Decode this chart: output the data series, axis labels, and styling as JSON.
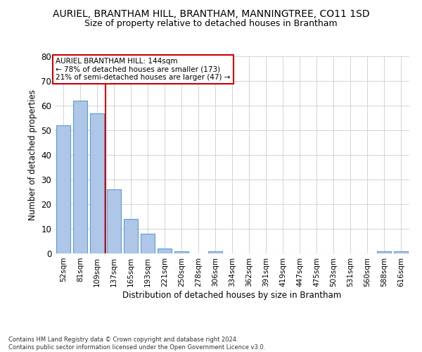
{
  "title": "AURIEL, BRANTHAM HILL, BRANTHAM, MANNINGTREE, CO11 1SD",
  "subtitle": "Size of property relative to detached houses in Brantham",
  "xlabel": "Distribution of detached houses by size in Brantham",
  "ylabel": "Number of detached properties",
  "categories": [
    "52sqm",
    "81sqm",
    "109sqm",
    "137sqm",
    "165sqm",
    "193sqm",
    "221sqm",
    "250sqm",
    "278sqm",
    "306sqm",
    "334sqm",
    "362sqm",
    "391sqm",
    "419sqm",
    "447sqm",
    "475sqm",
    "503sqm",
    "531sqm",
    "560sqm",
    "588sqm",
    "616sqm"
  ],
  "values": [
    52,
    62,
    57,
    26,
    14,
    8,
    2,
    1,
    0,
    1,
    0,
    0,
    0,
    0,
    0,
    0,
    0,
    0,
    0,
    1,
    1
  ],
  "bar_color": "#aec6e8",
  "bar_edge_color": "#5b9bd5",
  "vline_x": 2.5,
  "vline_color": "#cc0000",
  "annotation_box_color": "#cc0000",
  "annotation_text_line1": "AURIEL BRANTHAM HILL: 144sqm",
  "annotation_text_line2": "← 78% of detached houses are smaller (173)",
  "annotation_text_line3": "21% of semi-detached houses are larger (47) →",
  "ylim": [
    0,
    80
  ],
  "yticks": [
    0,
    10,
    20,
    30,
    40,
    50,
    60,
    70,
    80
  ],
  "footer_line1": "Contains HM Land Registry data © Crown copyright and database right 2024.",
  "footer_line2": "Contains public sector information licensed under the Open Government Licence v3.0.",
  "bg_color": "#ffffff",
  "grid_color": "#cccccc",
  "title_fontsize": 10,
  "subtitle_fontsize": 9,
  "tick_fontsize": 7.5,
  "ytick_fontsize": 8.5,
  "ylabel_fontsize": 8.5,
  "xlabel_fontsize": 8.5,
  "annotation_fontsize": 7.5,
  "footer_fontsize": 6.0
}
